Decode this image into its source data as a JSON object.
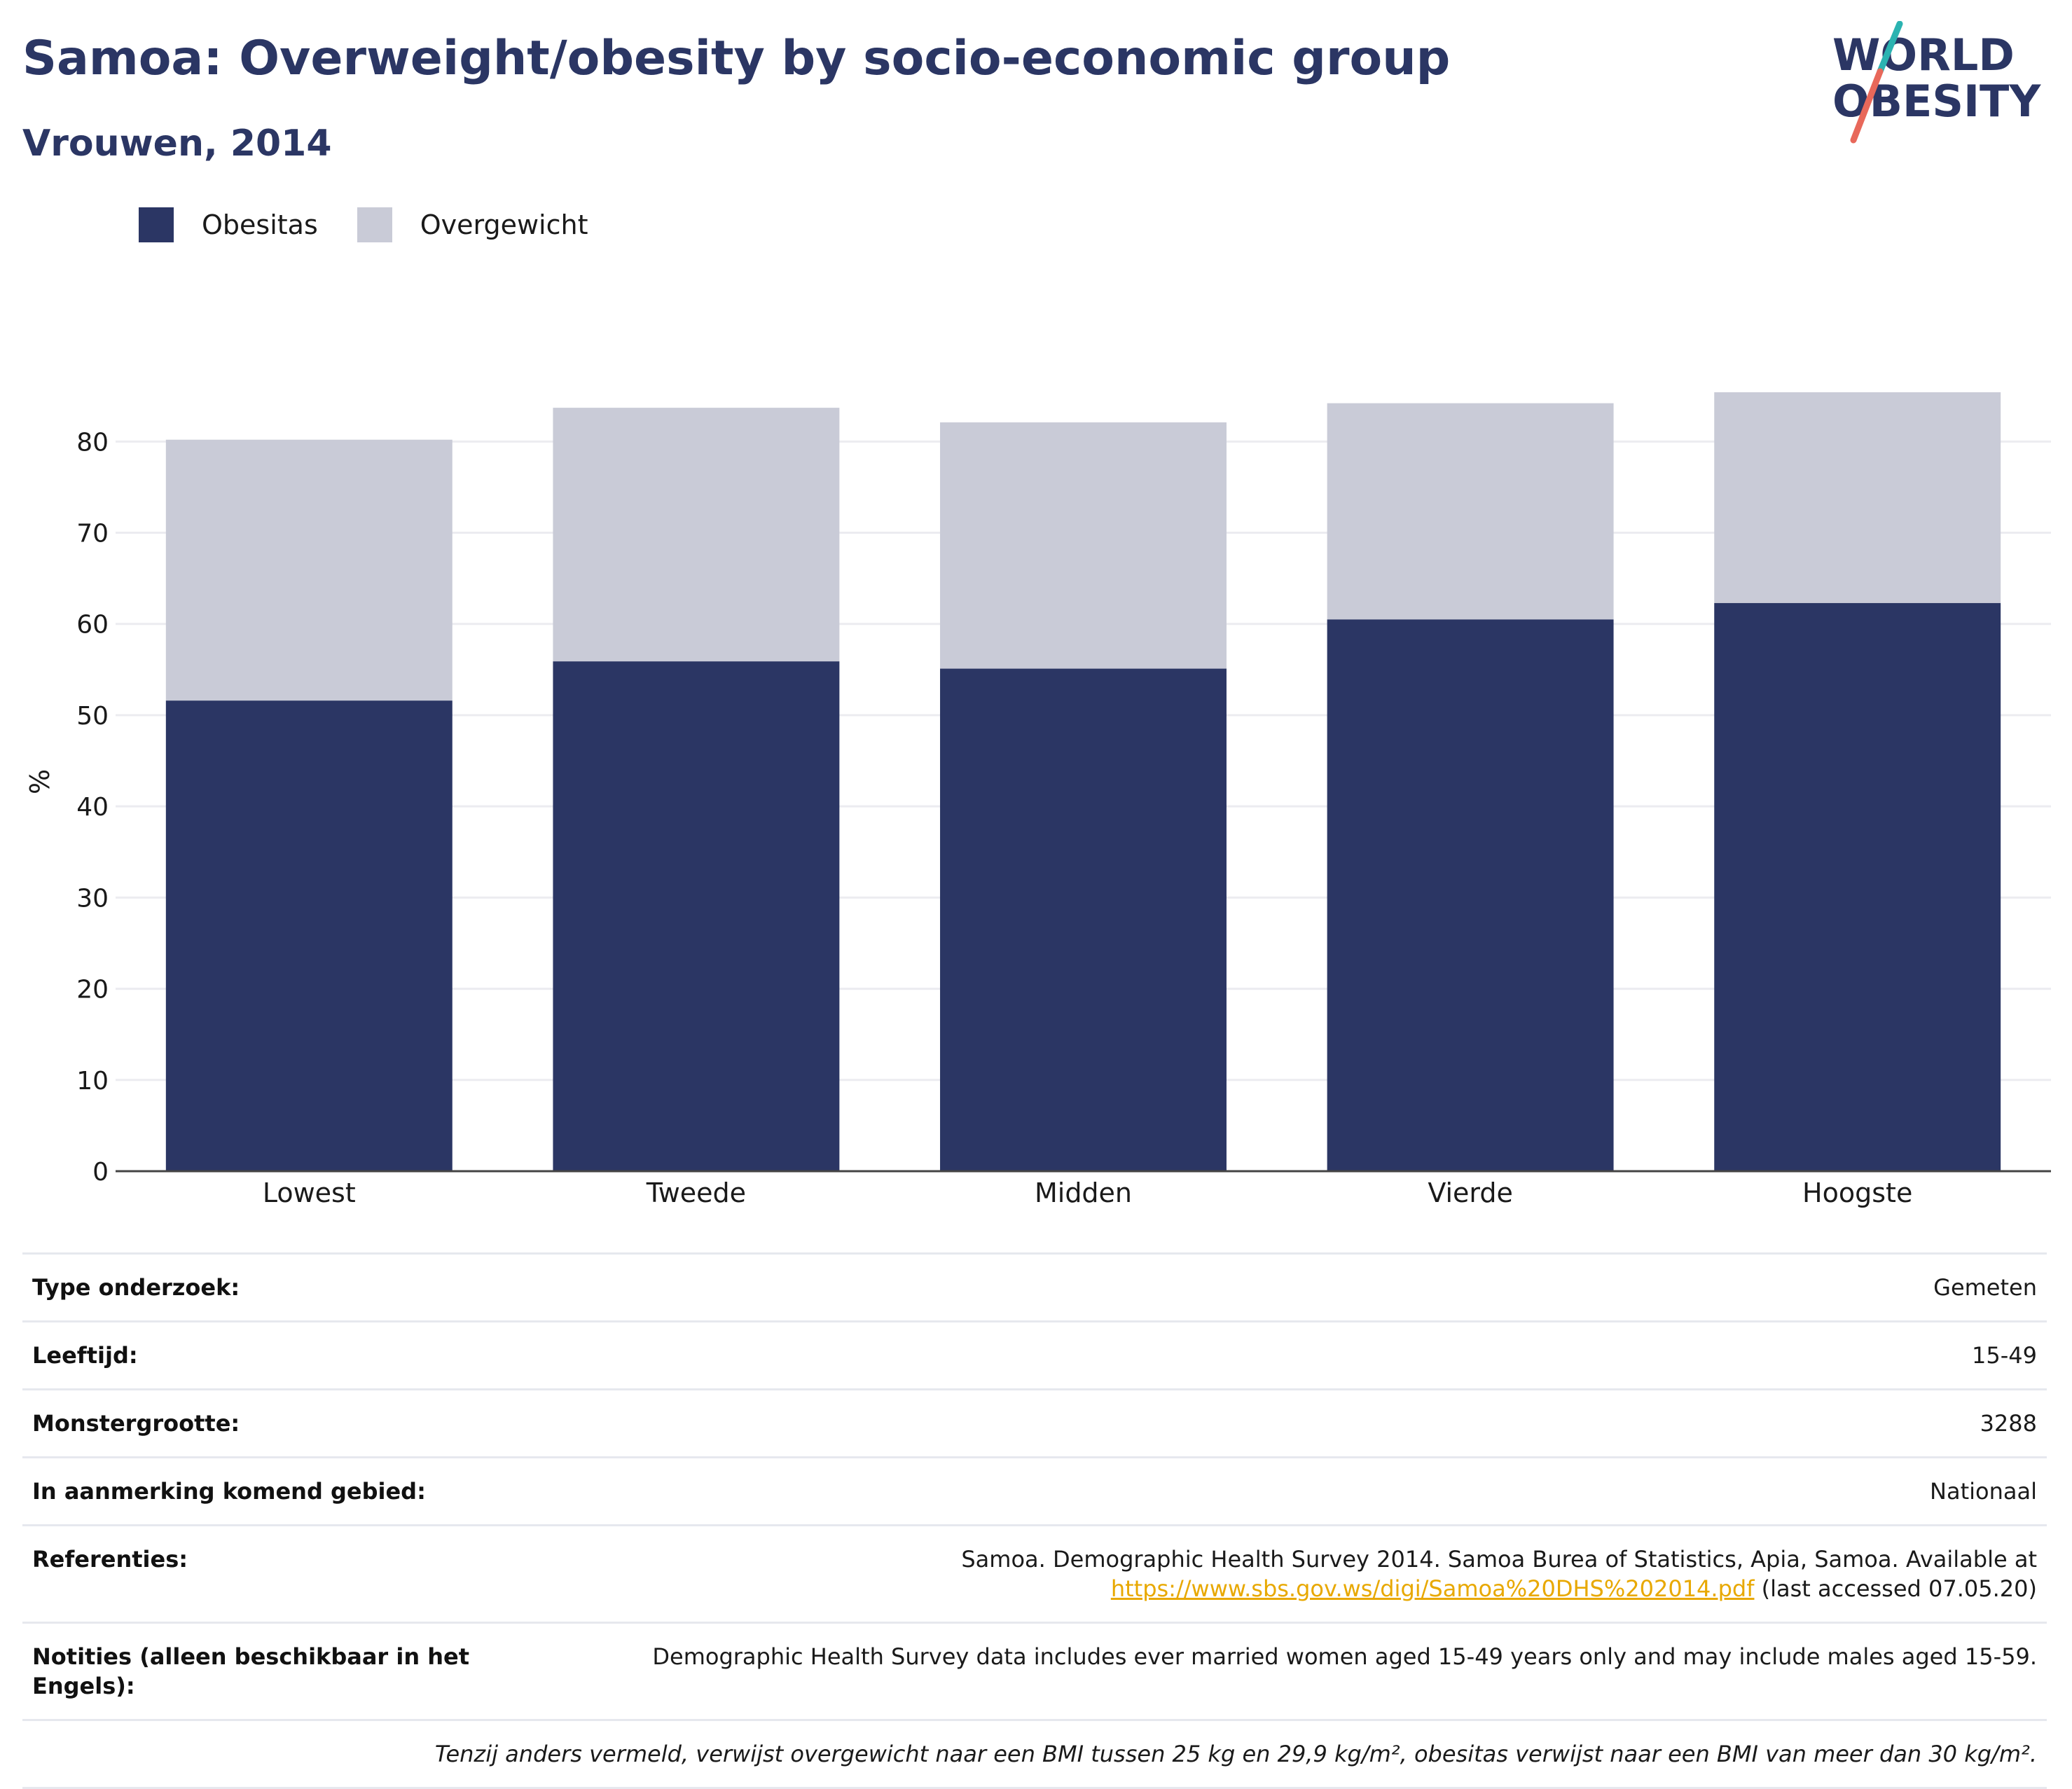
{
  "title": "Samoa: Overweight/obesity by socio-economic group",
  "subtitle": "Vrouwen, 2014",
  "logo": {
    "line1": "WORLD",
    "line2": "OBESITY",
    "colors": {
      "text": "#2b3664",
      "slash_teal": "#2bb3b1",
      "slash_coral": "#e8685a"
    }
  },
  "legend": [
    {
      "label": "Obesitas",
      "color": "#2b3664"
    },
    {
      "label": "Overgewicht",
      "color": "#c9cbd7"
    }
  ],
  "chart_data": {
    "type": "bar",
    "stacked": true,
    "categories": [
      "Lowest",
      "Tweede",
      "Midden",
      "Vierde",
      "Hoogste"
    ],
    "series": [
      {
        "name": "Obesitas",
        "color": "#2b3664",
        "values": [
          51.6,
          55.9,
          55.1,
          60.5,
          62.3
        ]
      },
      {
        "name": "Overgewicht",
        "color": "#c9cbd7",
        "values": [
          28.6,
          27.8,
          27.0,
          23.7,
          23.1
        ]
      }
    ],
    "ylabel": "%",
    "xlabel": "",
    "ylim": [
      0,
      85.4
    ],
    "yticks": [
      0,
      10,
      20,
      30,
      40,
      50,
      60,
      70,
      80
    ],
    "grid": true,
    "legend_position": "top-left"
  },
  "meta": {
    "rows": [
      {
        "key": "Type onderzoek:",
        "value": "Gemeten"
      },
      {
        "key": "Leeftijd:",
        "value": "15-49"
      },
      {
        "key": "Monstergrootte:",
        "value": "3288"
      },
      {
        "key": "In aanmerking komend gebied:",
        "value": "Nationaal"
      }
    ],
    "references": {
      "key": "Referenties:",
      "text": "Samoa. Demographic Health Survey 2014. Samoa Burea of Statistics, Apia, Samoa. Available at",
      "link": "https://www.sbs.gov.ws/digi/Samoa%20DHS%202014.pdf",
      "suffix": " (last accessed 07.05.20)"
    },
    "notes": {
      "key": "Notities (alleen beschikbaar in het Engels):",
      "value": "Demographic Health Survey data includes ever married women aged 15-49 years only and may include males aged 15-59."
    },
    "footnote": "Tenzij anders vermeld, verwijst overgewicht naar een BMI tussen 25 kg en 29,9 kg/m², obesitas verwijst naar een BMI van meer dan 30 kg/m²."
  }
}
